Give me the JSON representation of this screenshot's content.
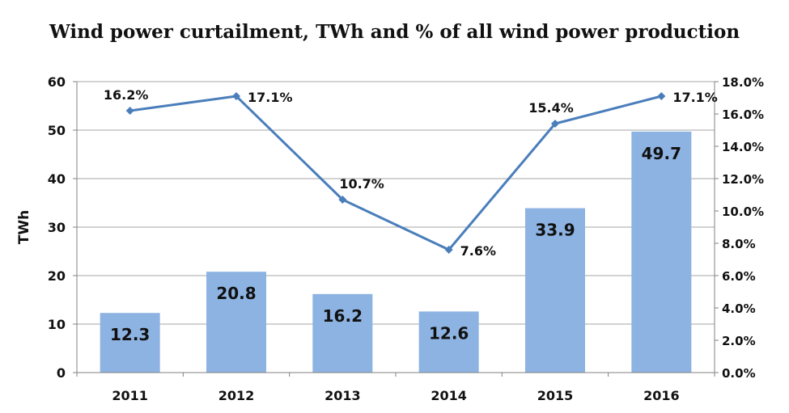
{
  "chart_data": {
    "type": "bar",
    "title": "Wind power curtailment, TWh and % of all wind power production",
    "xlabel": "",
    "ylabel": "TWh",
    "categories": [
      "2011",
      "2012",
      "2013",
      "2014",
      "2015",
      "2016"
    ],
    "series": [
      {
        "type": "bar",
        "axis": "left",
        "values": [
          12.3,
          20.8,
          16.2,
          12.6,
          33.9,
          49.7
        ],
        "labels": [
          "12.3",
          "20.8",
          "16.2",
          "12.6",
          "33.9",
          "49.7"
        ]
      },
      {
        "type": "line",
        "axis": "right",
        "values": [
          16.2,
          17.1,
          10.7,
          7.6,
          15.4,
          17.1
        ],
        "labels": [
          "16.2%",
          "17.1%",
          "10.7%",
          "7.6%",
          "15.4%",
          "17.1%"
        ]
      }
    ],
    "ylim": [
      0,
      60
    ],
    "y_ticks": [
      "0",
      "10",
      "20",
      "30",
      "40",
      "50",
      "60"
    ],
    "y2lim": [
      0,
      18
    ],
    "y2_ticks": [
      "0.0%",
      "2.0%",
      "4.0%",
      "6.0%",
      "8.0%",
      "10.0%",
      "12.0%",
      "14.0%",
      "16.0%",
      "18.0%"
    ],
    "grid": true,
    "legend": "none",
    "colors": {
      "bar": "#8db3e2",
      "line": "#4a7ebb",
      "grid": "#a6a6a6",
      "axis": "#808080"
    }
  }
}
